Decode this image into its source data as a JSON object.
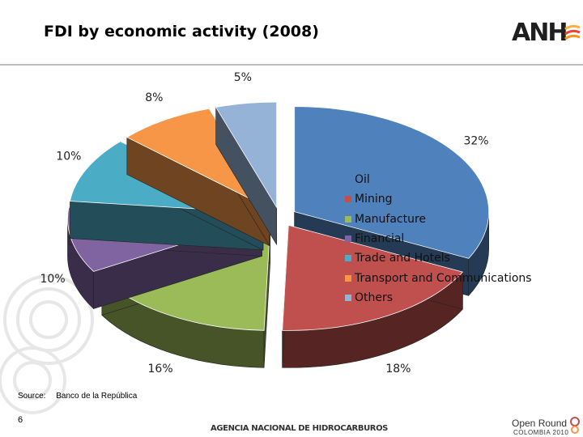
{
  "header": {
    "title": "FDI by economic activity (2008)",
    "logo_text": "ANH"
  },
  "footer": {
    "source_label": "Source:",
    "source_value": "Banco de la República",
    "page_number": "6",
    "agency": "AGENCIA NACIONAL DE HIDROCARBUROS",
    "event_line1": "Open Round",
    "event_line2": "COLOMBIA 2010"
  },
  "chart_data": {
    "type": "pie",
    "title": "",
    "three_d": true,
    "exploded": true,
    "legend_placement": "right",
    "categories": [
      "Oil",
      "Mining",
      "Manufacture",
      "Financial",
      "Trade and Hotels",
      "Transport and Communications",
      "Others"
    ],
    "values": [
      32,
      18,
      16,
      10,
      10,
      8,
      5
    ],
    "data_labels": [
      "32%",
      "18%",
      "16%",
      "10%",
      "10%",
      "8%",
      "5%"
    ],
    "colors": [
      "#4f81bd",
      "#c0504d",
      "#9bbb59",
      "#8064a2",
      "#4bacc6",
      "#f79646",
      "#95b3d7"
    ]
  }
}
